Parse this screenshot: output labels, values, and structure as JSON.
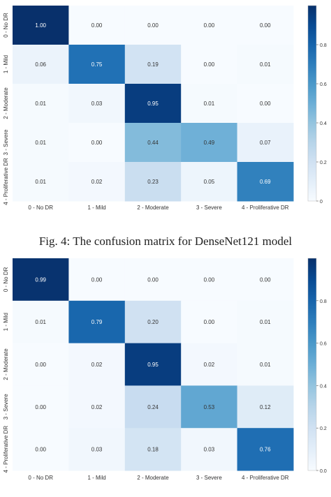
{
  "chart_data": [
    {
      "type": "heatmap",
      "title": "",
      "xlabel": "",
      "ylabel": "",
      "x_categories": [
        "0 - No DR",
        "1 - Mild",
        "2 - Moderate",
        "3 - Severe",
        "4 - Proliferative DR"
      ],
      "y_categories": [
        "0 - No DR",
        "1 - Mild",
        "2 - Moderate",
        "3 - Severe",
        "4 - Proliferative DR"
      ],
      "values": [
        [
          1.0,
          0.0,
          0.0,
          0.0,
          0.0
        ],
        [
          0.06,
          0.75,
          0.19,
          0.0,
          0.01
        ],
        [
          0.01,
          0.03,
          0.95,
          0.01,
          0.0
        ],
        [
          0.01,
          0.0,
          0.44,
          0.49,
          0.07
        ],
        [
          0.01,
          0.02,
          0.23,
          0.05,
          0.69
        ]
      ],
      "value_labels": [
        [
          "1.00",
          "0.00",
          "0.00",
          "0.00",
          "0.00"
        ],
        [
          "0.06",
          "0.75",
          "0.19",
          "0.00",
          "0.01"
        ],
        [
          "0.01",
          "0.03",
          "0.95",
          "0.01",
          "0.00"
        ],
        [
          "0.01",
          "0.00",
          "0.44",
          "0.49",
          "0.07"
        ],
        [
          "0.01",
          "0.02",
          "0.23",
          "0.05",
          "0.69"
        ]
      ],
      "colorbar": {
        "colormap": "Blues",
        "range": [
          0,
          1
        ],
        "ticks": [
          "0.8",
          "0.6",
          "0.4",
          "0.2",
          "0"
        ],
        "tick_values": [
          0.8,
          0.6,
          0.4,
          0.2,
          0
        ]
      },
      "caption": "Fig. 4: The confusion matrix for DenseNet121 model"
    },
    {
      "type": "heatmap",
      "title": "",
      "xlabel": "",
      "ylabel": "",
      "x_categories": [
        "0 - No DR",
        "1 - Mild",
        "2 - Moderate",
        "3 - Severe",
        "4 - Proliferative DR"
      ],
      "y_categories": [
        "0 - No DR",
        "1 - Mild",
        "2 - Moderate",
        "3 - Severe",
        "4 - Proliferative DR"
      ],
      "values": [
        [
          0.99,
          0.0,
          0.0,
          0.0,
          0.0
        ],
        [
          0.01,
          0.79,
          0.2,
          0.0,
          0.01
        ],
        [
          0.0,
          0.02,
          0.95,
          0.02,
          0.01
        ],
        [
          0.0,
          0.02,
          0.24,
          0.53,
          0.12
        ],
        [
          0.0,
          0.03,
          0.18,
          0.03,
          0.76
        ]
      ],
      "value_labels": [
        [
          "0.99",
          "0.00",
          "0.00",
          "0.00",
          "0.00"
        ],
        [
          "0.01",
          "0.79",
          "0.20",
          "0.00",
          "0.01"
        ],
        [
          "0.00",
          "0.02",
          "0.95",
          "0.02",
          "0.01"
        ],
        [
          "0.00",
          "0.02",
          "0.24",
          "0.53",
          "0.12"
        ],
        [
          "0.00",
          "0.03",
          "0.18",
          "0.03",
          "0.76"
        ]
      ],
      "colorbar": {
        "colormap": "Blues",
        "range": [
          0,
          1
        ],
        "ticks": [
          "0.8",
          "0.6",
          "0.4",
          "0.2",
          "0.0"
        ],
        "tick_values": [
          0.8,
          0.6,
          0.4,
          0.2,
          0.0
        ]
      }
    }
  ]
}
